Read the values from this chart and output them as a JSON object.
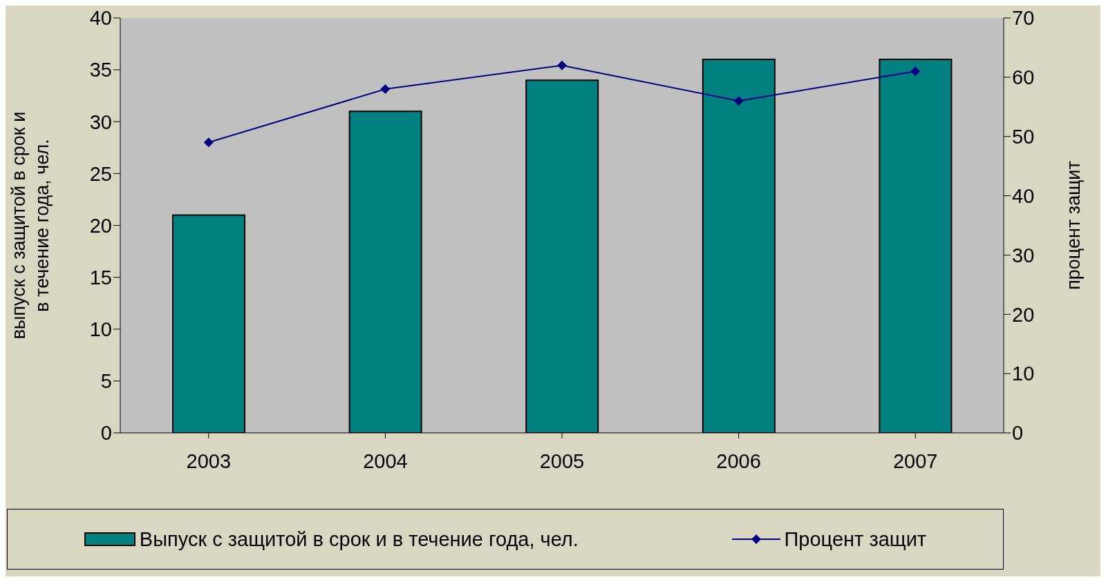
{
  "chart_data": {
    "type": "bar",
    "categories": [
      "2003",
      "2004",
      "2005",
      "2006",
      "2007"
    ],
    "ylabel": "выпуск с защитой в срок и в течение года, чел.",
    "y2label": "процент защит",
    "series": [
      {
        "name": "Выпуск с защитой в срок и в течение года, чел.",
        "color": "#008080",
        "values": [
          21,
          31,
          34,
          36,
          36
        ]
      },
      {
        "name": "Процент защит",
        "type": "line",
        "axis": "y2",
        "color": "#000080",
        "values": [
          49,
          58,
          62,
          56,
          61
        ],
        "marker": "diamond"
      }
    ],
    "ylim": [
      0,
      40
    ],
    "yticks": [
      0,
      5,
      10,
      15,
      20,
      25,
      30,
      35,
      40
    ],
    "y2lim": [
      0,
      70
    ],
    "y2ticks": [
      0,
      10,
      20,
      30,
      40,
      50,
      60,
      70
    ],
    "legend": "bottom"
  }
}
